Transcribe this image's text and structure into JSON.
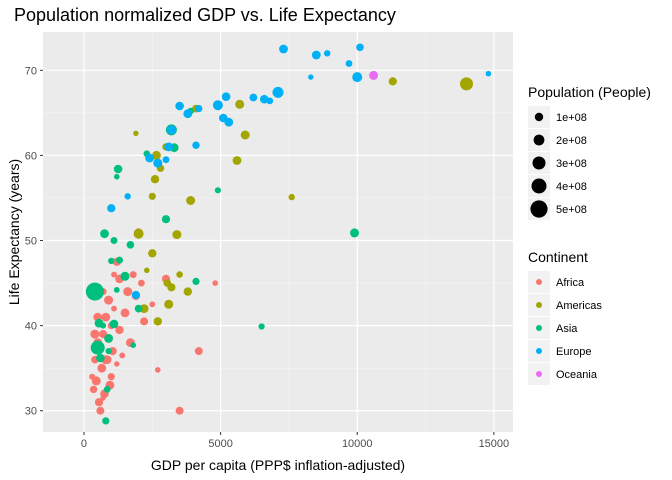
{
  "chart_data": {
    "type": "scatter",
    "title": "Population normalized GDP vs. Life Expectancy",
    "xlabel": "GDP per capita (PPP$ inflation-adjusted)",
    "ylabel": "Life Expectancy (years)",
    "xlim": [
      -1500,
      15700
    ],
    "ylim": [
      27.5,
      74.5
    ],
    "x_ticks": [
      0,
      5000,
      10000,
      15000
    ],
    "x_tick_labels": [
      "0",
      "5000",
      "10000",
      "15000"
    ],
    "y_ticks": [
      30,
      40,
      50,
      60,
      70
    ],
    "y_tick_labels": [
      "30",
      "40",
      "50",
      "60",
      "70"
    ],
    "grid": true,
    "background": "#ebebeb",
    "legend_position": "right",
    "size_legend": {
      "title": "Population (People)",
      "items": [
        {
          "label": "1e+08",
          "value": 100000000
        },
        {
          "label": "2e+08",
          "value": 200000000
        },
        {
          "label": "3e+08",
          "value": 300000000
        },
        {
          "label": "4e+08",
          "value": 400000000
        },
        {
          "label": "5e+08",
          "value": 500000000
        }
      ]
    },
    "color_legend": {
      "title": "Continent",
      "items": [
        {
          "label": "Africa",
          "color": "#F8766D"
        },
        {
          "label": "Americas",
          "color": "#A3A500"
        },
        {
          "label": "Asia",
          "color": "#00BF7D"
        },
        {
          "label": "Europe",
          "color": "#00B0F6"
        },
        {
          "label": "Oceania",
          "color": "#E76BF3"
        }
      ]
    },
    "series": [
      {
        "name": "Africa",
        "points": [
          [
            300,
            34
          ],
          [
            350,
            32.5
          ],
          [
            400,
            36
          ],
          [
            450,
            33.5
          ],
          [
            500,
            38
          ],
          [
            550,
            31
          ],
          [
            600,
            37.5
          ],
          [
            650,
            35
          ],
          [
            700,
            39
          ],
          [
            750,
            32
          ],
          [
            800,
            41
          ],
          [
            850,
            36
          ],
          [
            900,
            38.5
          ],
          [
            950,
            33
          ],
          [
            1000,
            40
          ],
          [
            1050,
            37
          ],
          [
            1100,
            42
          ],
          [
            1200,
            35.5
          ],
          [
            1300,
            39.5
          ],
          [
            1400,
            36.5
          ],
          [
            1500,
            41.5
          ],
          [
            1600,
            44
          ],
          [
            1700,
            38
          ],
          [
            1800,
            46
          ],
          [
            1900,
            43.5
          ],
          [
            2000,
            51
          ],
          [
            2100,
            45
          ],
          [
            2200,
            40.5
          ],
          [
            2500,
            42.5
          ],
          [
            2700,
            34.8
          ],
          [
            3000,
            45.5
          ],
          [
            3500,
            30
          ],
          [
            4200,
            37
          ],
          [
            4800,
            45
          ],
          [
            600,
            30
          ],
          [
            700,
            44
          ],
          [
            900,
            43
          ],
          [
            1100,
            46
          ],
          [
            500,
            41
          ],
          [
            800,
            36
          ],
          [
            1200,
            47.5
          ],
          [
            400,
            39
          ],
          [
            1000,
            34
          ],
          [
            1300,
            45.5
          ],
          [
            700,
            31.5
          ]
        ]
      },
      {
        "name": "Americas",
        "points": [
          [
            1900,
            62.6
          ],
          [
            2000,
            50.8
          ],
          [
            2200,
            42
          ],
          [
            2500,
            55.2
          ],
          [
            2600,
            57.2
          ],
          [
            2700,
            40.5
          ],
          [
            2800,
            58.5
          ],
          [
            3000,
            61
          ],
          [
            3100,
            42.5
          ],
          [
            3400,
            50.7
          ],
          [
            3500,
            46
          ],
          [
            3800,
            44
          ],
          [
            3900,
            54.7
          ],
          [
            4100,
            65.5
          ],
          [
            5600,
            59.4
          ],
          [
            5900,
            62.4
          ],
          [
            5700,
            66
          ],
          [
            7600,
            55.1
          ],
          [
            11300,
            68.7
          ],
          [
            14000,
            68.4
          ],
          [
            3050,
            45
          ],
          [
            2300,
            46.5
          ],
          [
            3200,
            44.5
          ],
          [
            2500,
            48.5
          ],
          [
            2650,
            60
          ]
        ]
      },
      {
        "name": "Asia",
        "points": [
          [
            400,
            44
          ],
          [
            500,
            37.4
          ],
          [
            550,
            40.3
          ],
          [
            600,
            36.2
          ],
          [
            700,
            40
          ],
          [
            750,
            50.8
          ],
          [
            800,
            28.8
          ],
          [
            850,
            32.5
          ],
          [
            900,
            37
          ],
          [
            1000,
            47.6
          ],
          [
            1100,
            50
          ],
          [
            1200,
            57.5
          ],
          [
            1250,
            58.4
          ],
          [
            1300,
            47.7
          ],
          [
            1500,
            45.8
          ],
          [
            1700,
            49.5
          ],
          [
            1800,
            37.7
          ],
          [
            2000,
            42
          ],
          [
            2300,
            60.2
          ],
          [
            3000,
            52.5
          ],
          [
            3200,
            63
          ],
          [
            3300,
            60.9
          ],
          [
            3900,
            65.2
          ],
          [
            4100,
            45.2
          ],
          [
            4900,
            55.9
          ],
          [
            6500,
            39.9
          ],
          [
            9900,
            50.9
          ],
          [
            1100,
            40.2
          ],
          [
            1200,
            44.2
          ],
          [
            900,
            38.5
          ]
        ]
      },
      {
        "name": "Europe",
        "points": [
          [
            1000,
            53.8
          ],
          [
            1600,
            55.2
          ],
          [
            1900,
            43.6
          ],
          [
            2400,
            59.7
          ],
          [
            2700,
            59.1
          ],
          [
            3000,
            59.5
          ],
          [
            3100,
            61
          ],
          [
            3500,
            65.8
          ],
          [
            3800,
            64.9
          ],
          [
            4100,
            61.2
          ],
          [
            4200,
            65.5
          ],
          [
            4900,
            65.9
          ],
          [
            5100,
            64.4
          ],
          [
            5300,
            63.9
          ],
          [
            5200,
            66.9
          ],
          [
            6200,
            66.8
          ],
          [
            6600,
            66.6
          ],
          [
            7100,
            67.4
          ],
          [
            7300,
            72.5
          ],
          [
            8300,
            69.2
          ],
          [
            8500,
            71.8
          ],
          [
            8900,
            72
          ],
          [
            9700,
            70.8
          ],
          [
            10000,
            69.2
          ],
          [
            10100,
            72.7
          ],
          [
            14800,
            69.6
          ],
          [
            6800,
            66.4
          ],
          [
            3200,
            63
          ]
        ]
      },
      {
        "name": "Oceania",
        "points": [
          [
            10600,
            69.4
          ]
        ]
      }
    ]
  }
}
